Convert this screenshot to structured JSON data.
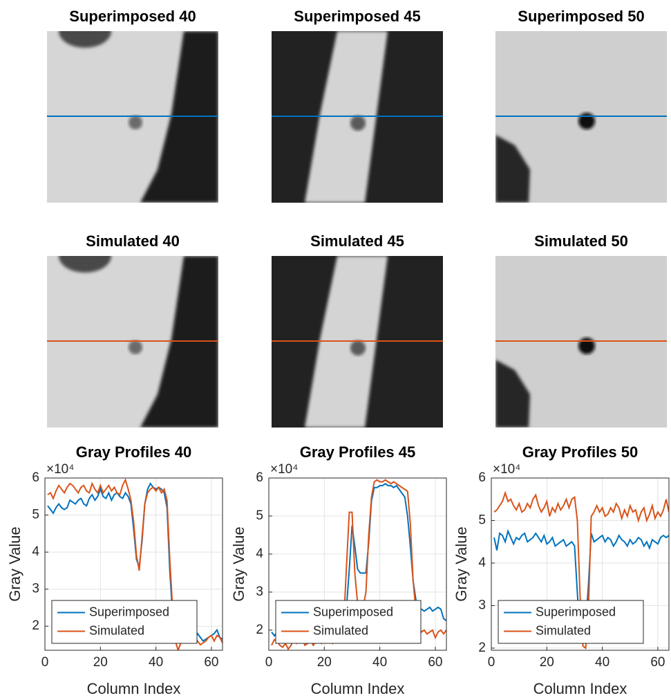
{
  "chart_data": [
    {
      "type": "image",
      "title": "Superimposed 40"
    },
    {
      "type": "image",
      "title": "Superimposed 45"
    },
    {
      "type": "image",
      "title": "Superimposed 50"
    },
    {
      "type": "image",
      "title": "Simulated 40"
    },
    {
      "type": "image",
      "title": "Simulated 45"
    },
    {
      "type": "image",
      "title": "Simulated 50"
    },
    {
      "type": "line",
      "title": "Gray Profiles 40",
      "xlabel": "Column Index",
      "ylabel": "Gray Value",
      "y_multiplier": "×10⁴",
      "x": [
        1,
        2,
        3,
        4,
        5,
        6,
        7,
        8,
        9,
        10,
        11,
        12,
        13,
        14,
        15,
        16,
        17,
        18,
        19,
        20,
        21,
        22,
        23,
        24,
        25,
        26,
        27,
        28,
        29,
        30,
        31,
        32,
        33,
        34,
        35,
        36,
        37,
        38,
        39,
        40,
        41,
        42,
        43,
        44,
        45,
        46,
        47,
        48,
        49,
        50,
        51,
        52,
        53,
        54,
        55,
        56,
        57,
        58,
        59,
        60,
        61,
        62,
        63,
        64
      ],
      "xlim": [
        0,
        64
      ],
      "xticks": [
        0,
        20,
        40,
        60
      ],
      "ylim": [
        1.35,
        6
      ],
      "yticks": [
        2,
        3,
        4,
        5,
        6
      ],
      "grid": true,
      "legend": "lower left",
      "series": [
        {
          "name": "Superimposed",
          "color": "#0072BD",
          "values": [
            5.25,
            5.15,
            5.05,
            5.2,
            5.3,
            5.2,
            5.15,
            5.2,
            5.4,
            5.35,
            5.3,
            5.4,
            5.45,
            5.3,
            5.25,
            5.45,
            5.55,
            5.4,
            5.5,
            5.7,
            5.5,
            5.45,
            5.6,
            5.4,
            5.55,
            5.6,
            5.5,
            5.45,
            5.6,
            5.5,
            5.3,
            4.6,
            3.8,
            3.6,
            4.3,
            5.3,
            5.7,
            5.85,
            5.75,
            5.7,
            5.75,
            5.7,
            5.6,
            5.2,
            3.5,
            2.3,
            1.85,
            1.8,
            1.75,
            1.8,
            1.7,
            1.75,
            1.7,
            1.65,
            1.8,
            1.7,
            1.6,
            1.65,
            1.7,
            1.75,
            1.8,
            1.9,
            1.7,
            1.65
          ]
        },
        {
          "name": "Simulated",
          "color": "#D95319",
          "values": [
            5.55,
            5.6,
            5.45,
            5.65,
            5.8,
            5.7,
            5.6,
            5.75,
            5.85,
            5.8,
            5.7,
            5.6,
            5.75,
            5.8,
            5.65,
            5.6,
            5.85,
            5.7,
            5.6,
            5.8,
            5.6,
            5.7,
            5.8,
            5.65,
            5.75,
            5.6,
            5.55,
            5.8,
            5.95,
            5.7,
            5.4,
            4.8,
            3.9,
            3.5,
            4.4,
            5.3,
            5.6,
            5.7,
            5.75,
            5.65,
            5.75,
            5.6,
            5.7,
            5.4,
            3.8,
            2.5,
            1.6,
            1.35,
            1.55,
            1.7,
            1.6,
            1.75,
            1.65,
            1.7,
            1.6,
            1.5,
            1.55,
            1.6,
            1.7,
            1.75,
            1.6,
            1.75,
            1.7,
            1.55
          ]
        }
      ]
    },
    {
      "type": "line",
      "title": "Gray Profiles 45",
      "xlabel": "Column Index",
      "ylabel": "Gray Value",
      "y_multiplier": "×10⁴",
      "x": [
        1,
        2,
        3,
        4,
        5,
        6,
        7,
        8,
        9,
        10,
        11,
        12,
        13,
        14,
        15,
        16,
        17,
        18,
        19,
        20,
        21,
        22,
        23,
        24,
        25,
        26,
        27,
        28,
        29,
        30,
        31,
        32,
        33,
        34,
        35,
        36,
        37,
        38,
        39,
        40,
        41,
        42,
        43,
        44,
        45,
        46,
        47,
        48,
        49,
        50,
        51,
        52,
        53,
        54,
        55,
        56,
        57,
        58,
        59,
        60,
        61,
        62,
        63,
        64
      ],
      "xlim": [
        0,
        64
      ],
      "xticks": [
        0,
        20,
        40,
        60
      ],
      "ylim": [
        1.47,
        6
      ],
      "yticks": [
        2,
        3,
        4,
        5,
        6
      ],
      "grid": true,
      "legend": "lower left",
      "series": [
        {
          "name": "Superimposed",
          "color": "#0072BD",
          "values": [
            1.95,
            1.85,
            1.95,
            2.0,
            1.9,
            1.85,
            1.95,
            2.0,
            1.9,
            1.85,
            1.95,
            2.0,
            1.9,
            1.95,
            1.85,
            1.9,
            2.0,
            1.95,
            1.9,
            1.85,
            1.95,
            2.0,
            1.9,
            1.95,
            2.05,
            2.1,
            2.2,
            2.6,
            3.6,
            4.75,
            4.2,
            3.6,
            3.5,
            3.5,
            3.5,
            4.3,
            5.4,
            5.75,
            5.75,
            5.8,
            5.8,
            5.85,
            5.8,
            5.8,
            5.75,
            5.8,
            5.7,
            5.6,
            5.5,
            5.0,
            4.2,
            3.3,
            2.8,
            2.6,
            2.55,
            2.5,
            2.55,
            2.6,
            2.5,
            2.55,
            2.6,
            2.55,
            2.3,
            2.25
          ]
        },
        {
          "name": "Simulated",
          "color": "#D95319",
          "values": [
            1.6,
            1.75,
            1.7,
            1.6,
            1.55,
            1.65,
            1.5,
            1.6,
            1.75,
            1.65,
            1.7,
            1.8,
            1.6,
            1.65,
            1.75,
            1.6,
            1.7,
            1.85,
            1.65,
            1.7,
            1.8,
            1.75,
            1.65,
            1.8,
            1.9,
            1.85,
            2.2,
            3.7,
            5.1,
            5.1,
            3.5,
            2.7,
            2.5,
            2.6,
            3.0,
            4.5,
            5.5,
            5.9,
            5.95,
            5.9,
            5.9,
            5.95,
            5.9,
            5.85,
            5.9,
            5.85,
            5.8,
            5.75,
            5.7,
            5.65,
            4.8,
            3.3,
            2.5,
            2.1,
            1.95,
            2.0,
            1.9,
            1.95,
            2.0,
            1.8,
            1.95,
            2.0,
            1.9,
            2.0
          ]
        }
      ]
    },
    {
      "type": "line",
      "title": "Gray Profiles 50",
      "xlabel": "Column Index",
      "ylabel": "Gray Value",
      "y_multiplier": "×10⁴",
      "x": [
        1,
        2,
        3,
        4,
        5,
        6,
        7,
        8,
        9,
        10,
        11,
        12,
        13,
        14,
        15,
        16,
        17,
        18,
        19,
        20,
        21,
        22,
        23,
        24,
        25,
        26,
        27,
        28,
        29,
        30,
        31,
        32,
        33,
        34,
        35,
        36,
        37,
        38,
        39,
        40,
        41,
        42,
        43,
        44,
        45,
        46,
        47,
        48,
        49,
        50,
        51,
        52,
        53,
        54,
        55,
        56,
        57,
        58,
        59,
        60,
        61,
        62,
        63,
        64
      ],
      "xlim": [
        0,
        64
      ],
      "xticks": [
        0,
        20,
        40,
        60
      ],
      "ylim": [
        1.95,
        6
      ],
      "yticks": [
        2,
        3,
        4,
        5,
        6
      ],
      "grid": true,
      "legend": "lower left",
      "series": [
        {
          "name": "Superimposed",
          "color": "#0072BD",
          "values": [
            4.6,
            4.3,
            4.7,
            4.65,
            4.5,
            4.75,
            4.6,
            4.45,
            4.6,
            4.55,
            4.65,
            4.7,
            4.5,
            4.55,
            4.6,
            4.7,
            4.6,
            4.5,
            4.65,
            4.45,
            4.5,
            4.6,
            4.4,
            4.45,
            4.5,
            4.55,
            4.4,
            4.45,
            4.5,
            4.4,
            3.3,
            2.3,
            2.1,
            2.5,
            3.5,
            4.7,
            4.5,
            4.55,
            4.6,
            4.65,
            4.5,
            4.6,
            4.55,
            4.4,
            4.5,
            4.65,
            4.55,
            4.5,
            4.4,
            4.55,
            4.45,
            4.5,
            4.6,
            4.55,
            4.4,
            4.5,
            4.35,
            4.55,
            4.5,
            4.45,
            4.6,
            4.65,
            4.6,
            4.65
          ]
        },
        {
          "name": "Simulated",
          "color": "#D95319",
          "values": [
            5.2,
            5.25,
            5.35,
            5.45,
            5.65,
            5.45,
            5.5,
            5.35,
            5.25,
            5.4,
            5.2,
            5.25,
            5.4,
            5.3,
            5.5,
            5.6,
            5.35,
            5.2,
            5.3,
            5.45,
            5.1,
            5.3,
            5.2,
            5.4,
            5.25,
            5.35,
            5.5,
            5.3,
            5.5,
            5.55,
            5.0,
            3.2,
            2.05,
            2.0,
            2.9,
            5.1,
            5.2,
            5.35,
            5.2,
            5.3,
            5.1,
            5.15,
            5.3,
            5.2,
            5.4,
            5.3,
            5.05,
            5.25,
            5.1,
            5.35,
            5.2,
            5.25,
            5.0,
            5.2,
            5.3,
            5.0,
            5.15,
            5.35,
            5.05,
            5.2,
            5.1,
            5.25,
            5.5,
            5.2
          ]
        }
      ]
    }
  ]
}
